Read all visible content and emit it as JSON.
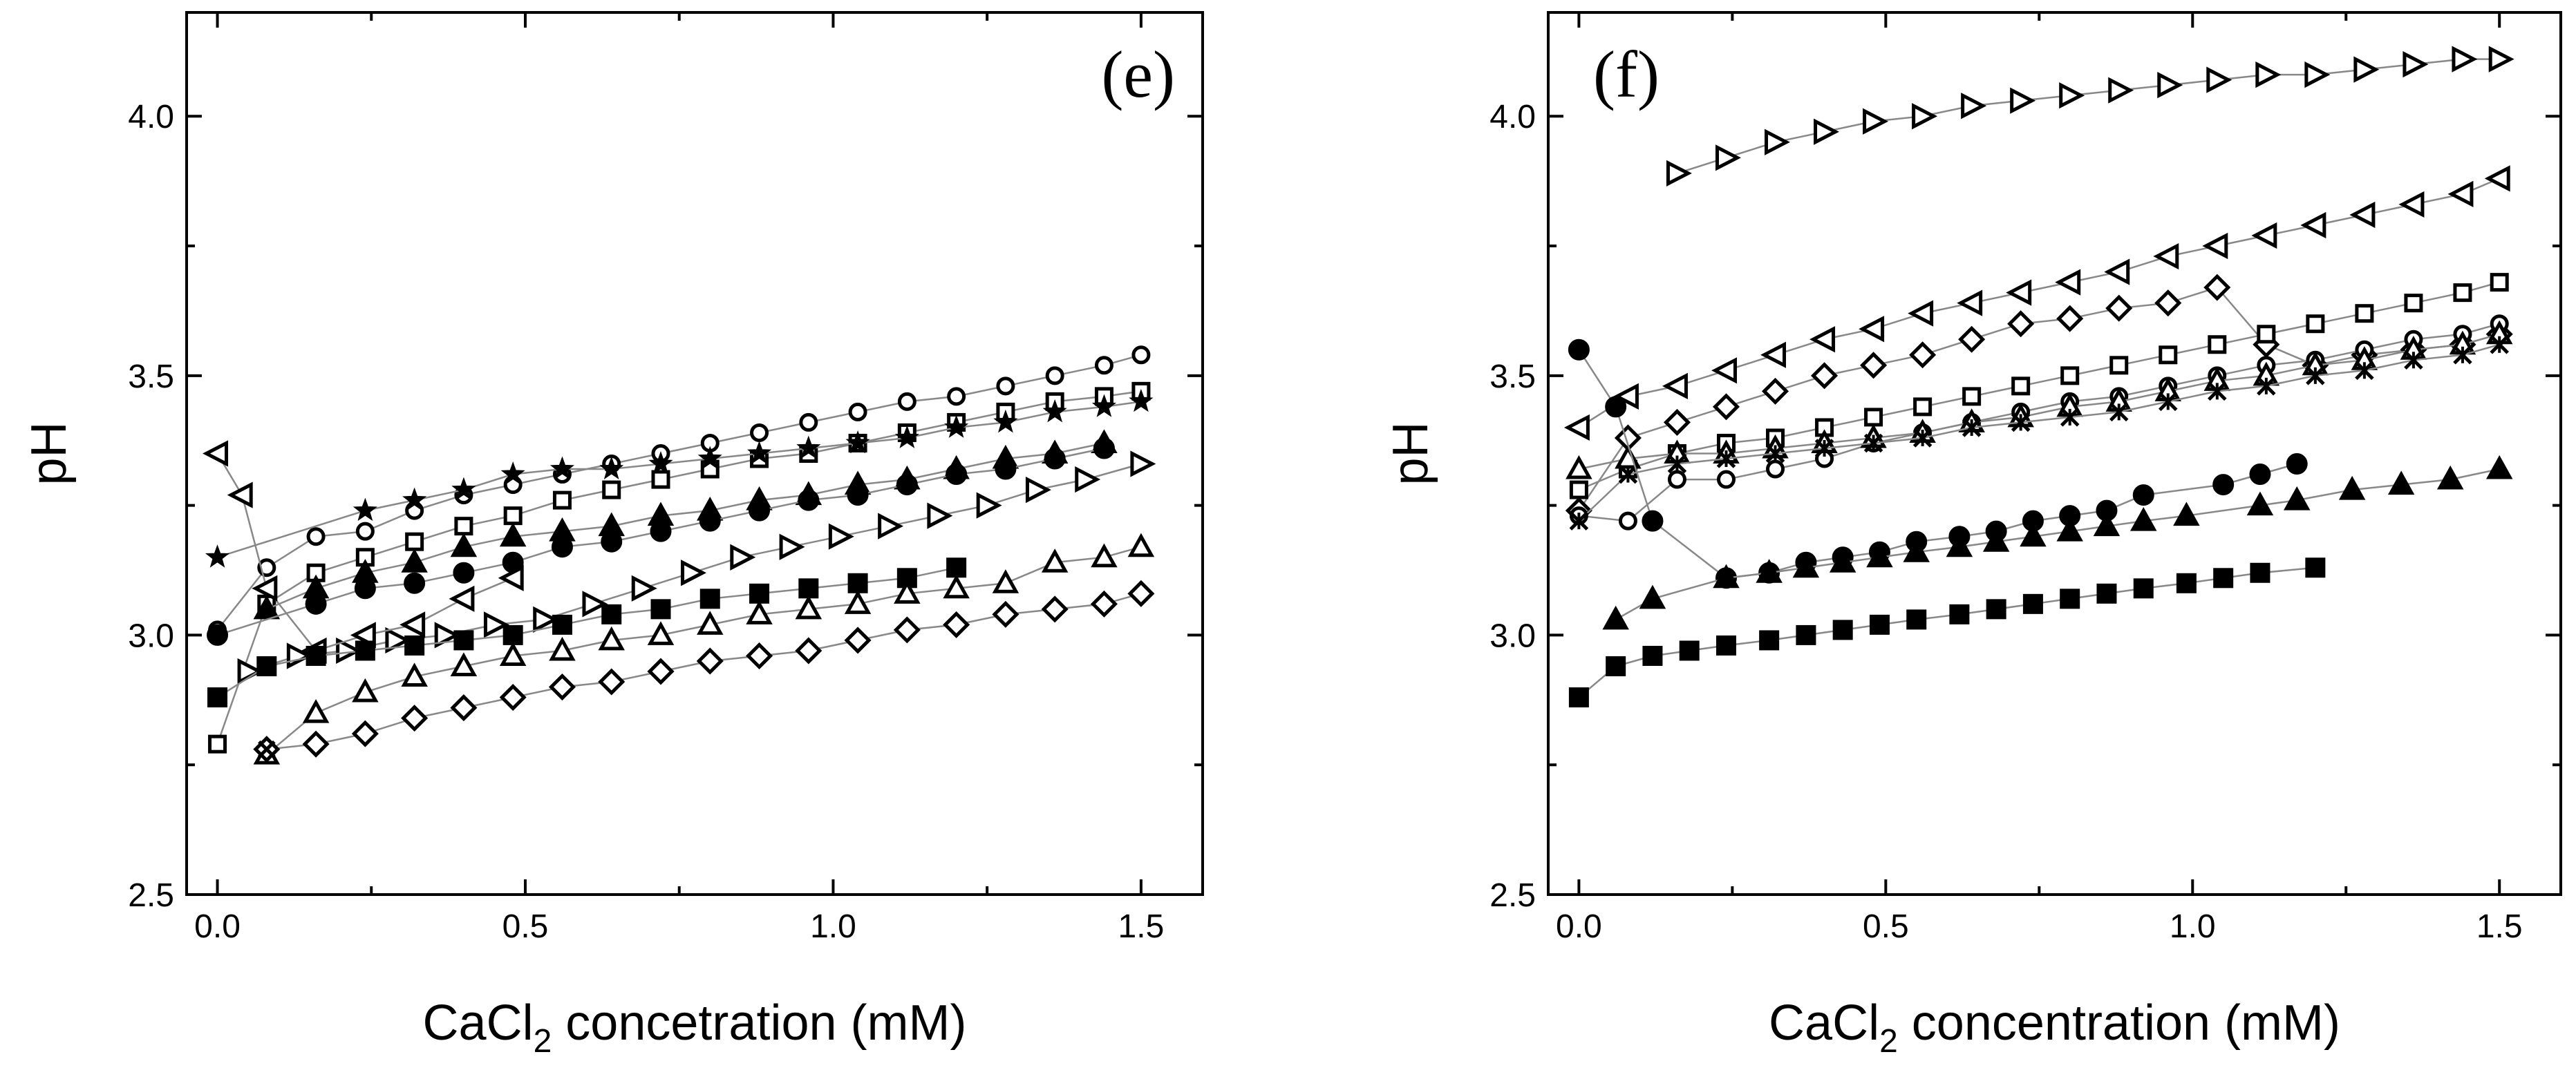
{
  "chart_data": [
    {
      "panel": "(e)",
      "type": "scatter",
      "xlabel": "CaCl",
      "xlabel_sub": "2",
      "xlabel_rest": " concetration (mM)",
      "ylabel": "pH",
      "xlim": [
        -0.05,
        1.6
      ],
      "ylim": [
        2.5,
        4.2
      ],
      "xticks": [
        0.0,
        0.5,
        1.0,
        1.5
      ],
      "yticks": [
        2.5,
        3.0,
        3.5,
        4.0
      ],
      "xtick_labels": [
        "0.0",
        "0.5",
        "1.0",
        "1.5"
      ],
      "ytick_labels": [
        "2.5",
        "3.0",
        "3.5",
        "4.0"
      ],
      "series": [
        {
          "marker": "open-circle",
          "x": [
            0,
            0.08,
            0.16,
            0.24,
            0.32,
            0.4,
            0.48,
            0.56,
            0.64,
            0.72,
            0.8,
            0.88,
            0.96,
            1.04,
            1.12,
            1.2,
            1.28,
            1.36,
            1.44,
            1.5
          ],
          "y": [
            3.01,
            3.13,
            3.19,
            3.2,
            3.24,
            3.27,
            3.29,
            3.31,
            3.33,
            3.35,
            3.37,
            3.39,
            3.41,
            3.43,
            3.45,
            3.46,
            3.48,
            3.5,
            3.52,
            3.54
          ]
        },
        {
          "marker": "open-square",
          "x": [
            0,
            0.08,
            0.16,
            0.24,
            0.32,
            0.4,
            0.48,
            0.56,
            0.64,
            0.72,
            0.8,
            0.88,
            0.96,
            1.04,
            1.12,
            1.2,
            1.28,
            1.36,
            1.44,
            1.5
          ],
          "y": [
            2.79,
            3.06,
            3.12,
            3.15,
            3.18,
            3.21,
            3.23,
            3.26,
            3.28,
            3.3,
            3.32,
            3.34,
            3.35,
            3.37,
            3.39,
            3.41,
            3.43,
            3.45,
            3.46,
            3.47
          ]
        },
        {
          "marker": "filled-star",
          "x": [
            0,
            0.24,
            0.32,
            0.4,
            0.48,
            0.56,
            0.64,
            0.72,
            0.8,
            0.88,
            0.96,
            1.04,
            1.12,
            1.2,
            1.28,
            1.36,
            1.44,
            1.5
          ],
          "y": [
            3.15,
            3.24,
            3.26,
            3.28,
            3.31,
            3.32,
            3.32,
            3.33,
            3.34,
            3.35,
            3.36,
            3.37,
            3.38,
            3.4,
            3.41,
            3.43,
            3.44,
            3.45
          ]
        },
        {
          "marker": "filled-triangle-up",
          "x": [
            0.08,
            0.16,
            0.24,
            0.32,
            0.4,
            0.48,
            0.56,
            0.64,
            0.72,
            0.8,
            0.88,
            0.96,
            1.04,
            1.12,
            1.2,
            1.28,
            1.36,
            1.44
          ],
          "y": [
            3.05,
            3.09,
            3.12,
            3.14,
            3.17,
            3.19,
            3.2,
            3.21,
            3.23,
            3.24,
            3.26,
            3.27,
            3.29,
            3.3,
            3.32,
            3.34,
            3.35,
            3.37
          ]
        },
        {
          "marker": "filled-circle",
          "x": [
            0,
            0.16,
            0.24,
            0.32,
            0.4,
            0.48,
            0.56,
            0.64,
            0.72,
            0.8,
            0.88,
            0.96,
            1.04,
            1.12,
            1.2,
            1.28,
            1.36,
            1.44
          ],
          "y": [
            3.0,
            3.06,
            3.09,
            3.1,
            3.12,
            3.14,
            3.17,
            3.18,
            3.2,
            3.22,
            3.24,
            3.26,
            3.27,
            3.29,
            3.31,
            3.32,
            3.34,
            3.36
          ]
        },
        {
          "marker": "open-triangle-right",
          "x": [
            0.05,
            0.13,
            0.21,
            0.29,
            0.37,
            0.45,
            0.53,
            0.61,
            0.69,
            0.77,
            0.85,
            0.93,
            1.01,
            1.09,
            1.17,
            1.25,
            1.33,
            1.41,
            1.5
          ],
          "y": [
            2.93,
            2.96,
            2.97,
            2.99,
            3.0,
            3.02,
            3.03,
            3.06,
            3.09,
            3.12,
            3.15,
            3.17,
            3.19,
            3.21,
            3.23,
            3.25,
            3.28,
            3.3,
            3.33
          ]
        },
        {
          "marker": "open-triangle-left",
          "x": [
            0,
            0.04,
            0.08,
            0.16,
            0.24,
            0.32,
            0.4,
            0.48
          ],
          "y": [
            3.35,
            3.27,
            3.09,
            2.97,
            3.0,
            3.02,
            3.07,
            3.11
          ]
        },
        {
          "marker": "filled-square",
          "x": [
            0,
            0.08,
            0.16,
            0.24,
            0.32,
            0.4,
            0.48,
            0.56,
            0.64,
            0.72,
            0.8,
            0.88,
            0.96,
            1.04,
            1.12,
            1.2
          ],
          "y": [
            2.88,
            2.94,
            2.96,
            2.97,
            2.98,
            2.99,
            3.0,
            3.02,
            3.04,
            3.05,
            3.07,
            3.08,
            3.09,
            3.1,
            3.11,
            3.13
          ]
        },
        {
          "marker": "open-triangle-up",
          "x": [
            0.08,
            0.16,
            0.24,
            0.32,
            0.4,
            0.48,
            0.56,
            0.64,
            0.72,
            0.8,
            0.88,
            0.96,
            1.04,
            1.12,
            1.2,
            1.28,
            1.36,
            1.44,
            1.5
          ],
          "y": [
            2.77,
            2.85,
            2.89,
            2.92,
            2.94,
            2.96,
            2.97,
            2.99,
            3.0,
            3.02,
            3.04,
            3.05,
            3.06,
            3.08,
            3.09,
            3.1,
            3.14,
            3.15,
            3.17
          ]
        },
        {
          "marker": "open-diamond",
          "x": [
            0.08,
            0.16,
            0.24,
            0.32,
            0.4,
            0.48,
            0.56,
            0.64,
            0.72,
            0.8,
            0.88,
            0.96,
            1.04,
            1.12,
            1.2,
            1.28,
            1.36,
            1.44,
            1.5
          ],
          "y": [
            2.78,
            2.79,
            2.81,
            2.84,
            2.86,
            2.88,
            2.9,
            2.91,
            2.93,
            2.95,
            2.96,
            2.97,
            2.99,
            3.01,
            3.02,
            3.04,
            3.05,
            3.06,
            3.08
          ]
        },
        {
          "marker": "cross",
          "x": [
            0.08
          ],
          "y": [
            2.78
          ]
        }
      ]
    },
    {
      "panel": "(f)",
      "type": "scatter",
      "xlabel": "CaCl",
      "xlabel_sub": "2",
      "xlabel_rest": " concentration (mM)",
      "ylabel": "pH",
      "xlim": [
        -0.05,
        1.6
      ],
      "ylim": [
        2.5,
        4.2
      ],
      "xticks": [
        0.0,
        0.5,
        1.0,
        1.5
      ],
      "yticks": [
        2.5,
        3.0,
        3.5,
        4.0
      ],
      "xtick_labels": [
        "0.0",
        "0.5",
        "1.0",
        "1.5"
      ],
      "ytick_labels": [
        "2.5",
        "3.0",
        "3.5",
        "4.0"
      ],
      "series": [
        {
          "marker": "open-triangle-right",
          "x": [
            0.16,
            0.24,
            0.32,
            0.4,
            0.48,
            0.56,
            0.64,
            0.72,
            0.8,
            0.88,
            0.96,
            1.04,
            1.12,
            1.2,
            1.28,
            1.36,
            1.44,
            1.5
          ],
          "y": [
            3.89,
            3.92,
            3.95,
            3.97,
            3.99,
            4.0,
            4.02,
            4.03,
            4.04,
            4.05,
            4.06,
            4.07,
            4.08,
            4.08,
            4.09,
            4.1,
            4.11,
            4.11
          ]
        },
        {
          "marker": "open-triangle-left",
          "x": [
            0,
            0.08,
            0.16,
            0.24,
            0.32,
            0.4,
            0.48,
            0.56,
            0.64,
            0.72,
            0.8,
            0.88,
            0.96,
            1.04,
            1.12,
            1.2,
            1.28,
            1.36,
            1.44,
            1.5
          ],
          "y": [
            3.4,
            3.46,
            3.48,
            3.51,
            3.54,
            3.57,
            3.59,
            3.62,
            3.64,
            3.66,
            3.68,
            3.7,
            3.73,
            3.75,
            3.77,
            3.79,
            3.81,
            3.83,
            3.85,
            3.88
          ]
        },
        {
          "marker": "open-diamond",
          "x": [
            0,
            0.08,
            0.16,
            0.24,
            0.32,
            0.4,
            0.48,
            0.56,
            0.64,
            0.72,
            0.8,
            0.88,
            0.96,
            1.04,
            1.12,
            1.2,
            1.28,
            1.36,
            1.44,
            1.5
          ],
          "y": [
            3.24,
            3.38,
            3.41,
            3.44,
            3.47,
            3.5,
            3.52,
            3.54,
            3.57,
            3.6,
            3.61,
            3.63,
            3.64,
            3.67,
            3.56,
            3.52,
            3.54,
            3.55,
            3.56,
            3.58
          ]
        },
        {
          "marker": "open-square",
          "x": [
            0,
            0.08,
            0.16,
            0.24,
            0.32,
            0.4,
            0.48,
            0.56,
            0.64,
            0.72,
            0.8,
            0.88,
            0.96,
            1.04,
            1.12,
            1.2,
            1.28,
            1.36,
            1.44,
            1.5
          ],
          "y": [
            3.28,
            3.32,
            3.35,
            3.37,
            3.38,
            3.4,
            3.42,
            3.44,
            3.46,
            3.48,
            3.5,
            3.52,
            3.54,
            3.56,
            3.58,
            3.6,
            3.62,
            3.64,
            3.66,
            3.68
          ]
        },
        {
          "marker": "open-circle",
          "x": [
            0,
            0.08,
            0.16,
            0.24,
            0.32,
            0.4,
            0.48,
            0.56,
            0.64,
            0.72,
            0.8,
            0.88,
            0.96,
            1.04,
            1.12,
            1.2,
            1.28,
            1.36,
            1.44,
            1.5
          ],
          "y": [
            3.23,
            3.22,
            3.3,
            3.3,
            3.32,
            3.34,
            3.37,
            3.39,
            3.41,
            3.43,
            3.45,
            3.46,
            3.48,
            3.5,
            3.52,
            3.53,
            3.55,
            3.57,
            3.58,
            3.6
          ]
        },
        {
          "marker": "open-triangle-up",
          "x": [
            0,
            0.08,
            0.16,
            0.24,
            0.32,
            0.4,
            0.48,
            0.56,
            0.64,
            0.72,
            0.8,
            0.88,
            0.96,
            1.04,
            1.12,
            1.2,
            1.28,
            1.36,
            1.44,
            1.5
          ],
          "y": [
            3.32,
            3.34,
            3.35,
            3.35,
            3.36,
            3.37,
            3.38,
            3.39,
            3.41,
            3.42,
            3.44,
            3.45,
            3.47,
            3.49,
            3.5,
            3.52,
            3.53,
            3.55,
            3.56,
            3.58
          ]
        },
        {
          "marker": "star",
          "x": [
            0,
            0.08,
            0.16,
            0.24,
            0.32,
            0.4,
            0.48,
            0.56,
            0.64,
            0.72,
            0.8,
            0.88,
            0.96,
            1.04,
            1.12,
            1.2,
            1.28,
            1.36,
            1.44,
            1.5
          ],
          "y": [
            3.22,
            3.31,
            3.33,
            3.34,
            3.35,
            3.36,
            3.37,
            3.38,
            3.4,
            3.41,
            3.42,
            3.43,
            3.45,
            3.47,
            3.48,
            3.5,
            3.51,
            3.53,
            3.54,
            3.56
          ]
        },
        {
          "marker": "filled-circle",
          "x": [
            0,
            0.06,
            0.12,
            0.24,
            0.31,
            0.37,
            0.43,
            0.49,
            0.55,
            0.62,
            0.68,
            0.74,
            0.8,
            0.86,
            0.92,
            1.05,
            1.11,
            1.17
          ],
          "y": [
            3.55,
            3.44,
            3.22,
            3.11,
            3.12,
            3.14,
            3.15,
            3.16,
            3.18,
            3.19,
            3.2,
            3.22,
            3.23,
            3.24,
            3.27,
            3.29,
            3.31,
            3.33
          ]
        },
        {
          "marker": "filled-triangle-up",
          "x": [
            0.06,
            0.12,
            0.24,
            0.31,
            0.37,
            0.43,
            0.49,
            0.55,
            0.62,
            0.68,
            0.74,
            0.8,
            0.86,
            0.92,
            0.99,
            1.11,
            1.17,
            1.26,
            1.34,
            1.42,
            1.5
          ],
          "y": [
            3.03,
            3.07,
            3.11,
            3.12,
            3.13,
            3.14,
            3.15,
            3.16,
            3.17,
            3.18,
            3.19,
            3.2,
            3.21,
            3.22,
            3.23,
            3.25,
            3.26,
            3.28,
            3.29,
            3.3,
            3.32
          ]
        },
        {
          "marker": "filled-square",
          "x": [
            0,
            0.06,
            0.12,
            0.18,
            0.24,
            0.31,
            0.37,
            0.43,
            0.49,
            0.55,
            0.62,
            0.68,
            0.74,
            0.8,
            0.86,
            0.92,
            0.99,
            1.05,
            1.11,
            1.2
          ],
          "y": [
            2.88,
            2.94,
            2.96,
            2.97,
            2.98,
            2.99,
            3.0,
            3.01,
            3.02,
            3.03,
            3.04,
            3.05,
            3.06,
            3.07,
            3.08,
            3.09,
            3.1,
            3.11,
            3.12,
            3.13
          ]
        }
      ]
    }
  ]
}
